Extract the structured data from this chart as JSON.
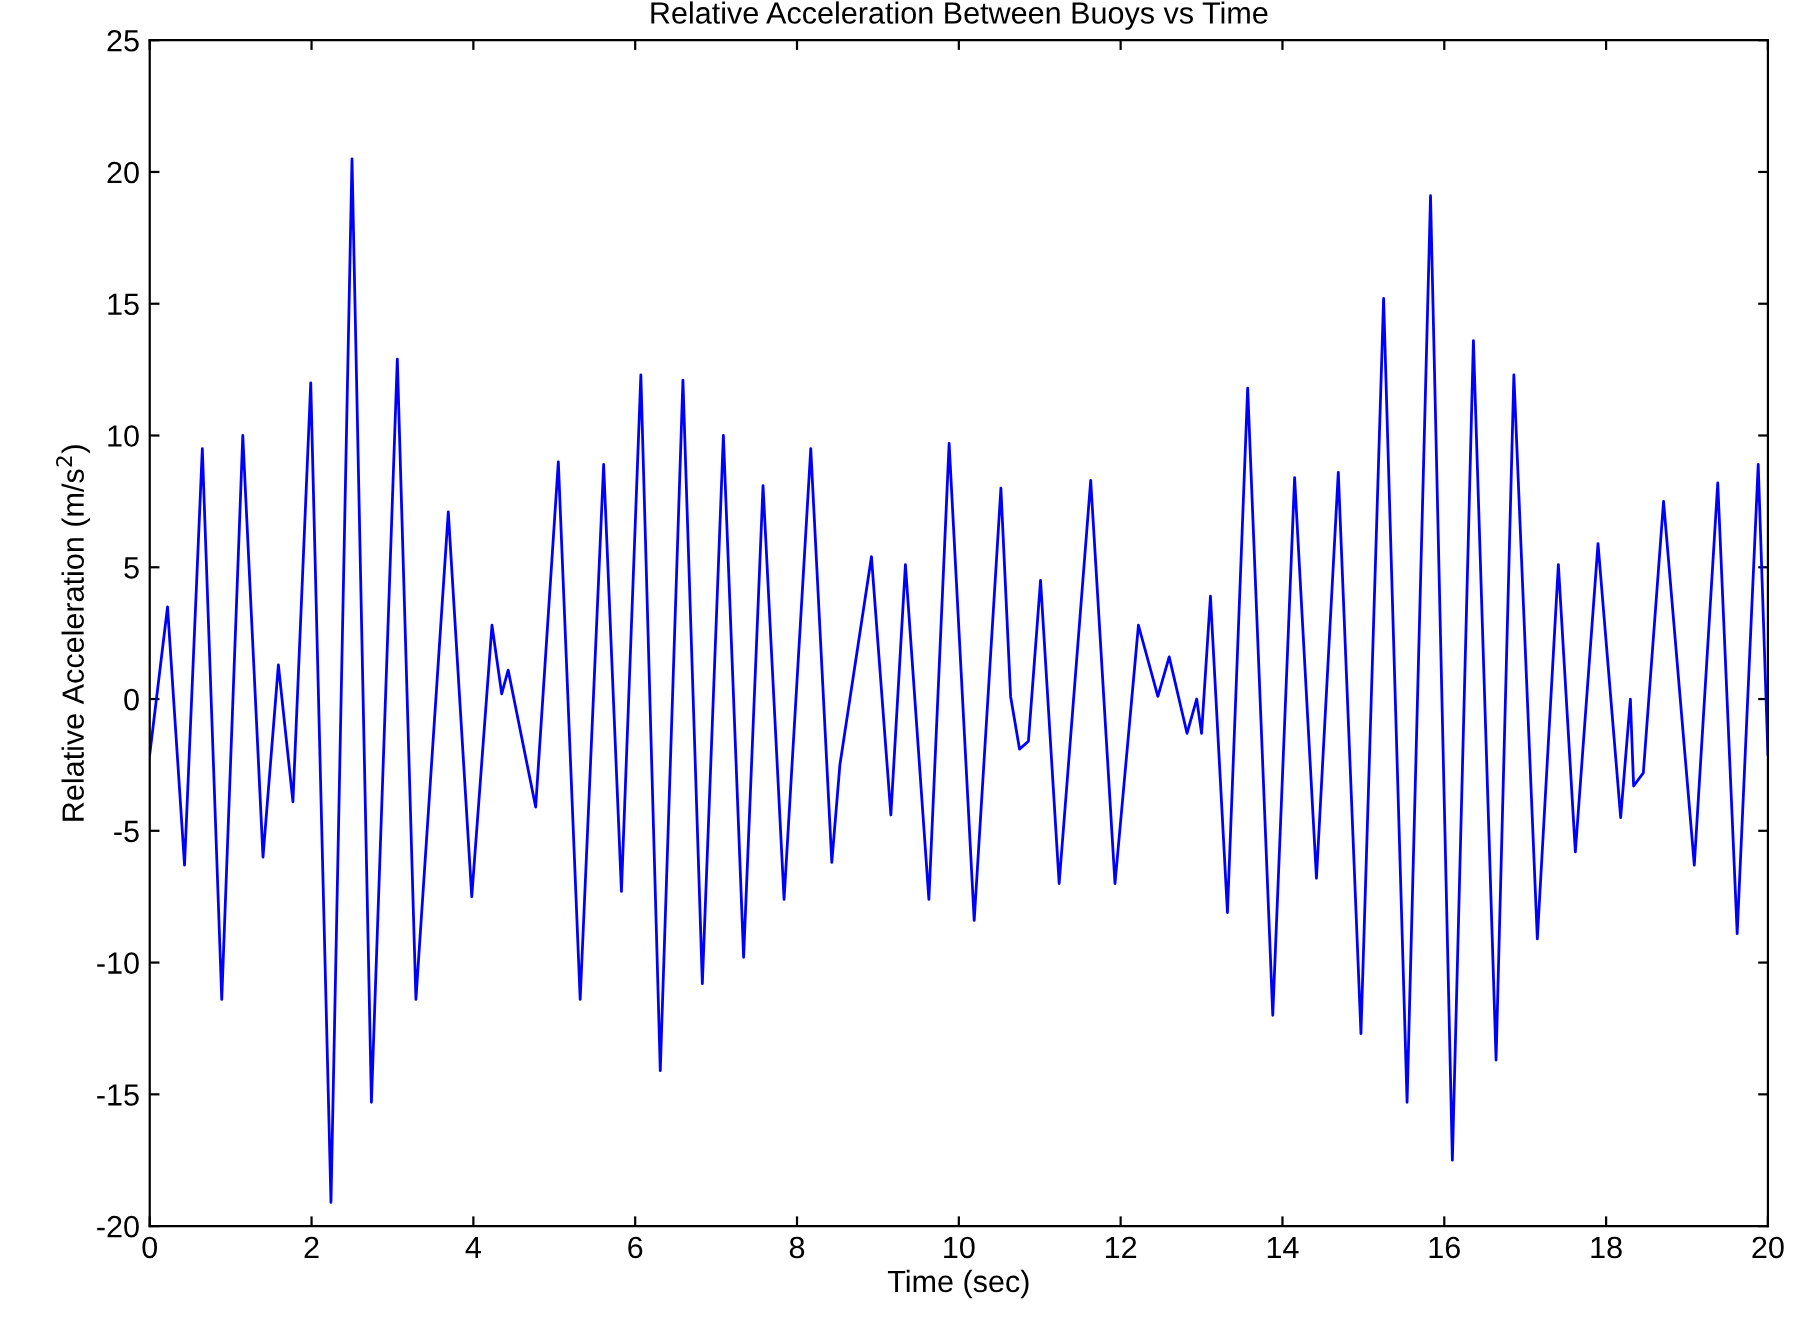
{
  "chart_data": {
    "type": "line",
    "title": "Relative Acceleration Between Buoys vs Time",
    "xlabel": "Time (sec)",
    "ylabel": "Relative Acceleration (m/s$^{2}$)",
    "xlim": [
      0,
      20
    ],
    "ylim": [
      -20,
      25
    ],
    "xticks": [
      0,
      2,
      4,
      6,
      8,
      10,
      12,
      14,
      16,
      18,
      20
    ],
    "yticks": [
      -20,
      -15,
      -10,
      -5,
      0,
      5,
      10,
      15,
      20,
      25
    ],
    "grid": false,
    "line_style": "solid",
    "marker": "none",
    "series": [
      {
        "color": "#0000ff",
        "x": [
          0,
          0.22,
          0.43,
          0.65,
          0.89,
          1.15,
          1.4,
          1.59,
          1.77,
          1.99,
          2.24,
          2.5,
          2.74,
          3.06,
          3.29,
          3.69,
          3.98,
          4.23,
          4.35,
          4.43,
          4.77,
          5.05,
          5.32,
          5.61,
          5.83,
          6.07,
          6.31,
          6.59,
          6.83,
          7.09,
          7.34,
          7.58,
          7.84,
          8.17,
          8.43,
          8.53,
          8.92,
          9.16,
          9.34,
          9.63,
          9.88,
          10.19,
          10.52,
          10.64,
          10.75,
          10.86,
          11.01,
          11.24,
          11.63,
          11.93,
          12.22,
          12.46,
          12.6,
          12.82,
          12.94,
          13.0,
          13.11,
          13.32,
          13.57,
          13.88,
          14.15,
          14.42,
          14.69,
          14.97,
          15.25,
          15.54,
          15.83,
          16.1,
          16.36,
          16.64,
          16.86,
          17.15,
          17.41,
          17.62,
          17.9,
          18.18,
          18.3,
          18.34,
          18.46,
          18.71,
          19.09,
          19.38,
          19.62,
          19.88,
          20
        ],
        "values": [
          -2.1,
          3.5,
          -6.3,
          9.5,
          -11.4,
          10.0,
          -6.0,
          1.3,
          -3.9,
          12.0,
          -19.1,
          20.5,
          -15.3,
          12.9,
          -11.4,
          7.1,
          -7.5,
          2.8,
          0.2,
          1.1,
          -4.1,
          9.0,
          -11.4,
          8.9,
          -7.3,
          12.3,
          -14.1,
          12.1,
          -10.8,
          10.0,
          -9.8,
          8.1,
          -7.6,
          9.5,
          -6.2,
          -2.5,
          5.4,
          -4.4,
          5.1,
          -7.6,
          9.7,
          -8.4,
          8.0,
          0.1,
          -1.9,
          -1.6,
          4.5,
          -7.0,
          8.3,
          -7.0,
          2.8,
          0.1,
          1.6,
          -1.3,
          0,
          -1.3,
          3.9,
          -8.1,
          11.8,
          -12.0,
          8.4,
          -6.8,
          8.6,
          -12.7,
          15.2,
          -15.3,
          19.1,
          -17.5,
          13.6,
          -13.7,
          12.3,
          -9.1,
          5.1,
          -5.8,
          5.9,
          -4.5,
          0,
          -3.3,
          -2.8,
          7.5,
          -6.3,
          8.2,
          -8.9,
          8.9,
          -2.1
        ]
      }
    ]
  }
}
